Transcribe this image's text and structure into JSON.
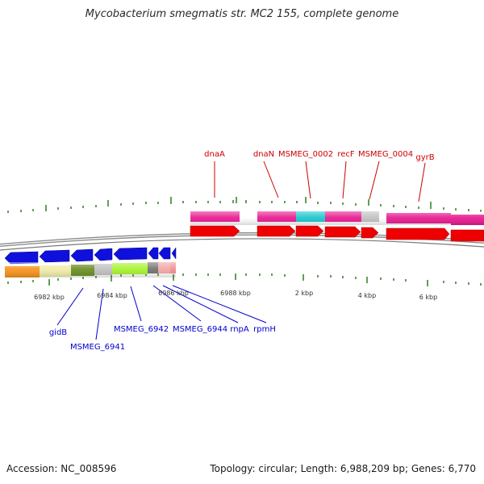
{
  "title": "Mycobacterium smegmatis str. MC2 155, complete genome",
  "footer": {
    "accession": "Accession: NC_008596",
    "topology": "Topology: circular; Length: 6,988,209 bp; Genes: 6,770"
  },
  "colors": {
    "backbone": "#8c8c8c",
    "tick": "#2e7d1e",
    "upper_label": "#cc0000",
    "lower_label": "#0000cc",
    "arrow_red": "#ee0000",
    "arrow_blue": "#1010dd",
    "cds_magenta": "#e8198f",
    "cds_cyan": "#19c6cc",
    "cds_grey": "#c0c0c0",
    "cds_orange": "#f7941d",
    "cds_cream": "#f1eda9",
    "cds_olive": "#6b8e23",
    "cds_lime": "#a6f22c",
    "cds_darkgrey": "#707070",
    "cds_pink": "#f3a3a3",
    "cds_salmon": "#ef8f8f"
  },
  "position_labels": [
    "6982 kbp",
    "6984 kbp",
    "6986 kbp",
    "6988 kbp",
    "2 kbp",
    "4 kbp",
    "6 kbp"
  ],
  "upper_genes": [
    "dnaA",
    "dnaN",
    "MSMEG_0002",
    "recF",
    "MSMEG_0004",
    "gyrB"
  ],
  "lower_genes": [
    "gidB",
    "MSMEG_6941",
    "MSMEG_6942",
    "MSMEG_6944",
    "rnpA",
    "rpmH"
  ]
}
